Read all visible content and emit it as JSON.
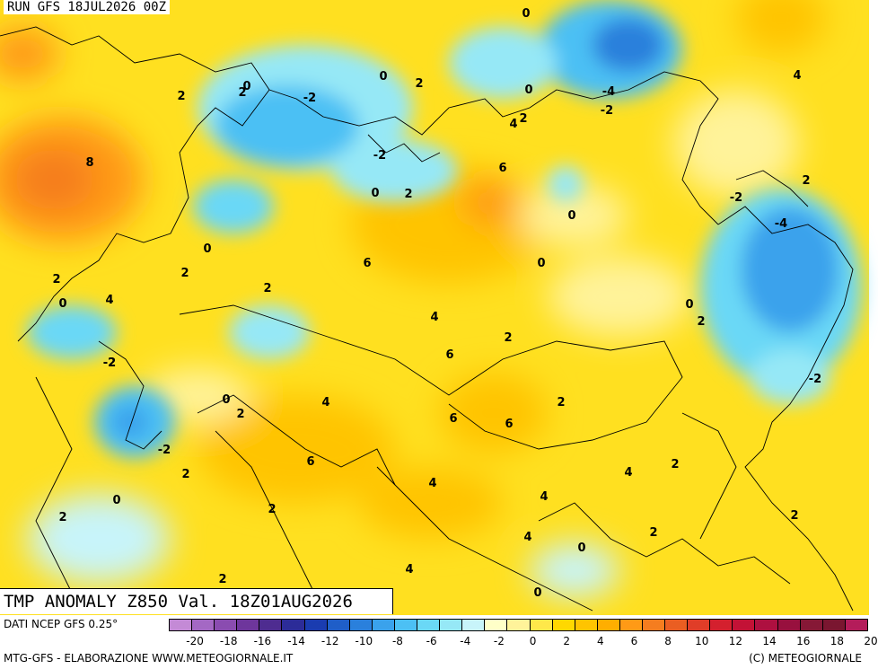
{
  "header": {
    "run": "RUN GFS 18JUL2026 00Z"
  },
  "title": "TMP ANOMALY Z850 Val. 18Z01AUG2026",
  "footer": {
    "source": "DATI NCEP GFS 0.25°",
    "credit_left": "MTG-GFS - ELABORAZIONE WWW.METEOGIORNALE.IT",
    "credit_right": "(C) METEOGIORNALE"
  },
  "colorscale": {
    "colors": [
      "#c48ad6",
      "#a468c4",
      "#8a4cb0",
      "#6e369c",
      "#4e2c90",
      "#2c2c98",
      "#1a3cb0",
      "#1f5ec8",
      "#2a80dc",
      "#3aa2ec",
      "#4cc0f4",
      "#6ad8f6",
      "#96e8f6",
      "#c8f4fa",
      "#ffffc8",
      "#fff39a",
      "#ffe84a",
      "#ffd800",
      "#ffc400",
      "#ffae00",
      "#ff9a16",
      "#f57d1f",
      "#ea5e22",
      "#e03d28",
      "#d4202e",
      "#c31236",
      "#ae1040",
      "#98103e",
      "#861836",
      "#7a1630",
      "#b41c5a"
    ],
    "tick_labels": [
      "-20",
      "-18",
      "-16",
      "-14",
      "-12",
      "-10",
      "-8",
      "-6",
      "-4",
      "-2",
      "0",
      "2",
      "4",
      "6",
      "8",
      "10",
      "12",
      "14",
      "16",
      "18",
      "20"
    ]
  },
  "map_labels": [
    {
      "text": "0"
    },
    {
      "text": "4"
    },
    {
      "text": "2"
    },
    {
      "text": "0"
    },
    {
      "text": "-2"
    },
    {
      "text": "0"
    },
    {
      "text": "2"
    },
    {
      "text": "2"
    },
    {
      "text": "8"
    },
    {
      "text": "-2"
    },
    {
      "text": "0"
    },
    {
      "text": "2"
    },
    {
      "text": "6"
    },
    {
      "text": "6"
    },
    {
      "text": "0"
    },
    {
      "text": "2"
    },
    {
      "text": "0"
    },
    {
      "text": "2"
    },
    {
      "text": "2"
    },
    {
      "text": "4"
    },
    {
      "text": "0"
    },
    {
      "text": "-2"
    },
    {
      "text": "0"
    },
    {
      "text": "0"
    },
    {
      "text": "4"
    },
    {
      "text": "2"
    },
    {
      "text": "6"
    },
    {
      "text": "2"
    },
    {
      "text": "4"
    },
    {
      "text": "-2"
    },
    {
      "text": "-4"
    },
    {
      "text": "-2"
    },
    {
      "text": "0"
    },
    {
      "text": "2"
    },
    {
      "text": "4"
    },
    {
      "text": "-4"
    },
    {
      "text": "-2"
    },
    {
      "text": "2"
    },
    {
      "text": "0"
    },
    {
      "text": "2"
    },
    {
      "text": "-2"
    },
    {
      "text": "2"
    },
    {
      "text": "6"
    },
    {
      "text": "6"
    },
    {
      "text": "4"
    },
    {
      "text": "2"
    },
    {
      "text": "4"
    },
    {
      "text": "2"
    },
    {
      "text": "0"
    },
    {
      "text": "2"
    },
    {
      "text": "6"
    },
    {
      "text": "4"
    },
    {
      "text": "4"
    },
    {
      "text": "0"
    },
    {
      "text": "2"
    },
    {
      "text": "2"
    },
    {
      "text": "0"
    },
    {
      "text": "2"
    },
    {
      "text": "-2"
    },
    {
      "text": "2"
    },
    {
      "text": "4"
    }
  ]
}
